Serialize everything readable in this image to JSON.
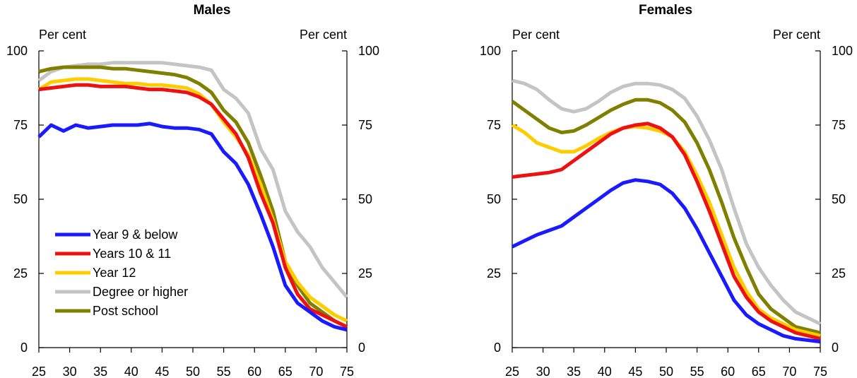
{
  "unit_label": "Per cent",
  "colors": {
    "Year 9 & below": "#1a1aff",
    "Years 10 & 11": "#ee1111",
    "Year 12": "#ffcc00",
    "Degree or higher": "#c4c4c4",
    "Post school": "#808000"
  },
  "chart_data": [
    {
      "type": "line",
      "title": "Males",
      "xlim": [
        25,
        75
      ],
      "ylim": [
        0,
        100
      ],
      "xticks": [
        25,
        30,
        35,
        40,
        45,
        50,
        55,
        60,
        65,
        70,
        75
      ],
      "yticks": [
        0,
        25,
        50,
        75,
        100
      ],
      "ylabel_left": "Per cent",
      "ylabel_right": "Per cent",
      "legend": "left-inside",
      "x": [
        25,
        27,
        29,
        31,
        33,
        35,
        37,
        39,
        41,
        43,
        45,
        47,
        49,
        51,
        53,
        55,
        57,
        59,
        61,
        63,
        65,
        67,
        69,
        71,
        73,
        75
      ],
      "series": [
        {
          "name": "Year 9 & below",
          "values": [
            71,
            75,
            73,
            75,
            74,
            74.5,
            75,
            75,
            75,
            75.5,
            74.5,
            74,
            74,
            73.5,
            72,
            66,
            62,
            55,
            45,
            34,
            21,
            15,
            12,
            9,
            7,
            6
          ]
        },
        {
          "name": "Years 10 & 11",
          "values": [
            87,
            87.5,
            88,
            88.5,
            88.5,
            88,
            88,
            88,
            87.5,
            87,
            87,
            86.5,
            86,
            84.5,
            82,
            77,
            72,
            64,
            52,
            42,
            27,
            18,
            13,
            11,
            9,
            7
          ]
        },
        {
          "name": "Year 12",
          "values": [
            87,
            89.5,
            90,
            90.5,
            90.5,
            90,
            89.5,
            89,
            89,
            88.5,
            88.5,
            88,
            87.5,
            85.5,
            82,
            76,
            71,
            65,
            55,
            43,
            29,
            22,
            17,
            14,
            11,
            9
          ]
        },
        {
          "name": "Degree or higher",
          "values": [
            90,
            93,
            94.5,
            95,
            95.5,
            95.5,
            96,
            96,
            96,
            96,
            96,
            95.5,
            95,
            94.5,
            93.5,
            87,
            84,
            79,
            67,
            60,
            46,
            39,
            34,
            27,
            22,
            17
          ]
        },
        {
          "name": "Post school",
          "values": [
            93,
            94,
            94.5,
            94.5,
            94.5,
            94.5,
            94,
            94,
            93.5,
            93,
            92.5,
            92,
            91,
            89,
            86,
            80,
            76,
            69,
            58,
            46,
            29,
            21,
            15,
            12,
            9,
            7
          ]
        }
      ]
    },
    {
      "type": "line",
      "title": "Females",
      "xlim": [
        25,
        75
      ],
      "ylim": [
        0,
        100
      ],
      "xticks": [
        25,
        30,
        35,
        40,
        45,
        50,
        55,
        60,
        65,
        70,
        75
      ],
      "yticks": [
        0,
        25,
        50,
        75,
        100
      ],
      "ylabel_left": "Per cent",
      "ylabel_right": "Per cent",
      "x": [
        25,
        27,
        29,
        31,
        33,
        35,
        37,
        39,
        41,
        43,
        45,
        47,
        49,
        51,
        53,
        55,
        57,
        59,
        61,
        63,
        65,
        67,
        69,
        71,
        73,
        75
      ],
      "series": [
        {
          "name": "Year 9 & below",
          "values": [
            34,
            36,
            38,
            39.5,
            41,
            44,
            47,
            50,
            53,
            55.5,
            56.5,
            56,
            55,
            52,
            47,
            40,
            32,
            24,
            16,
            11,
            8,
            6,
            4,
            3,
            2.5,
            2
          ]
        },
        {
          "name": "Years 10 & 11",
          "values": [
            57.5,
            58,
            58.5,
            59,
            60,
            63,
            66,
            69,
            72,
            74,
            75,
            75.5,
            74,
            71,
            65,
            56,
            46,
            35,
            24,
            17,
            12,
            9,
            7,
            5,
            4,
            3
          ]
        },
        {
          "name": "Year 12",
          "values": [
            75,
            72.5,
            69,
            67.5,
            66,
            66,
            68,
            70.5,
            72.5,
            74,
            74.5,
            74,
            73,
            71,
            66,
            58,
            49,
            38,
            27,
            19,
            13,
            10,
            8,
            6,
            5,
            4
          ]
        },
        {
          "name": "Degree or higher",
          "values": [
            90,
            89,
            87,
            83.5,
            80.5,
            79.5,
            80.5,
            83,
            86,
            88,
            89,
            89,
            88.5,
            87,
            84,
            78,
            70,
            60,
            47,
            35,
            27,
            21,
            16,
            12,
            10,
            8
          ]
        },
        {
          "name": "Post school",
          "values": [
            83,
            80,
            77,
            74,
            72.5,
            73,
            75,
            77.5,
            80,
            82,
            83.5,
            83.5,
            82.5,
            80,
            76,
            69,
            60,
            49,
            37,
            27,
            18,
            13,
            10,
            7,
            6,
            5
          ]
        }
      ]
    }
  ]
}
